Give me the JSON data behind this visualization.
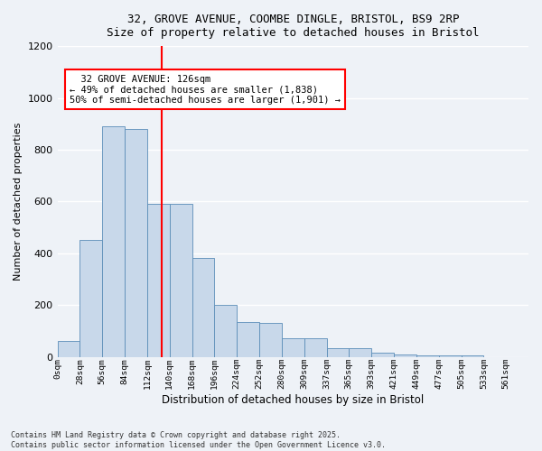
{
  "title_line1": "32, GROVE AVENUE, COOMBE DINGLE, BRISTOL, BS9 2RP",
  "title_line2": "Size of property relative to detached houses in Bristol",
  "xlabel": "Distribution of detached houses by size in Bristol",
  "ylabel": "Number of detached properties",
  "bin_labels": [
    "0sqm",
    "28sqm",
    "56sqm",
    "84sqm",
    "112sqm",
    "140sqm",
    "168sqm",
    "196sqm",
    "224sqm",
    "252sqm",
    "280sqm",
    "309sqm",
    "337sqm",
    "365sqm",
    "393sqm",
    "421sqm",
    "449sqm",
    "477sqm",
    "505sqm",
    "533sqm",
    "561sqm"
  ],
  "bar_values": [
    60,
    450,
    890,
    880,
    590,
    590,
    380,
    200,
    135,
    130,
    70,
    70,
    35,
    35,
    15,
    10,
    5,
    5,
    5,
    0,
    0
  ],
  "bar_color": "#c8d8ea",
  "bar_edge_color": "#5b8db8",
  "vline_x": 4.63,
  "vline_color": "red",
  "annotation_text": "  32 GROVE AVENUE: 126sqm\n← 49% of detached houses are smaller (1,838)\n50% of semi-detached houses are larger (1,901) →",
  "annotation_box_color": "white",
  "annotation_box_edge": "red",
  "ylim": [
    0,
    1200
  ],
  "yticks": [
    0,
    200,
    400,
    600,
    800,
    1000,
    1200
  ],
  "footnote": "Contains HM Land Registry data © Crown copyright and database right 2025.\nContains public sector information licensed under the Open Government Licence v3.0.",
  "bg_color": "#eef2f7",
  "grid_color": "#ffffff"
}
